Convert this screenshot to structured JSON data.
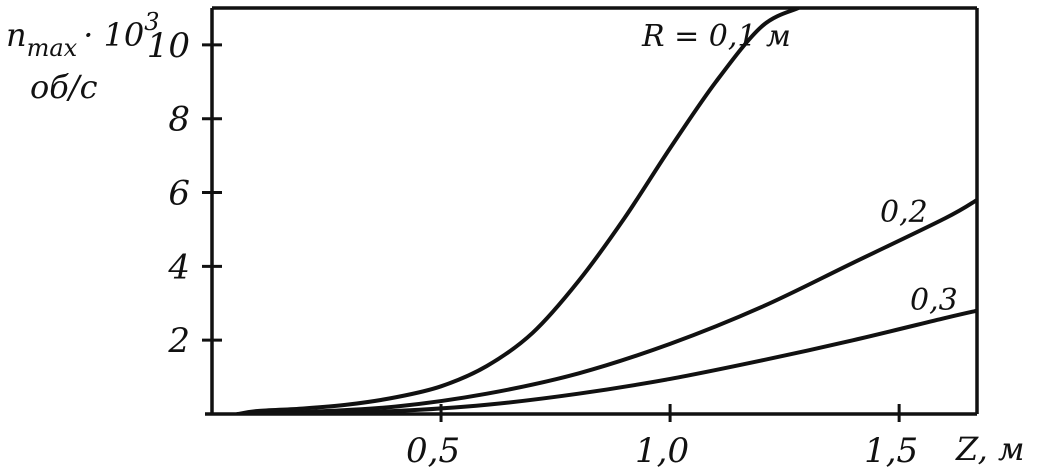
{
  "chart_data": {
    "type": "line",
    "y_title": {
      "main": "n",
      "subscript": "max",
      "suffix": "· 10",
      "superscript": "3"
    },
    "y_unit": "об/с",
    "x_title": "Z, м",
    "xlim": [
      0,
      1.67
    ],
    "ylim": [
      0,
      11
    ],
    "x_ticks": [
      {
        "value": 0.5,
        "label": "0,5"
      },
      {
        "value": 1.0,
        "label": "1,0"
      },
      {
        "value": 1.5,
        "label": "1,5"
      }
    ],
    "y_ticks": [
      {
        "value": 2,
        "label": "2"
      },
      {
        "value": 4,
        "label": "4"
      },
      {
        "value": 6,
        "label": "6"
      },
      {
        "value": 8,
        "label": "8"
      },
      {
        "value": 10,
        "label": "10"
      }
    ],
    "grid": false,
    "series": [
      {
        "name": "R = 0,1 м",
        "x": [
          0.0,
          0.1,
          0.2,
          0.3,
          0.4,
          0.5,
          0.6,
          0.7,
          0.8,
          0.9,
          1.0,
          1.1,
          1.2,
          1.28
        ],
        "y": [
          0.0,
          0.08,
          0.15,
          0.26,
          0.45,
          0.75,
          1.3,
          2.2,
          3.6,
          5.3,
          7.2,
          9.0,
          10.5,
          11.0
        ]
      },
      {
        "name": "0,2",
        "x": [
          0.0,
          0.2,
          0.4,
          0.6,
          0.8,
          1.0,
          1.2,
          1.4,
          1.6,
          1.67
        ],
        "y": [
          0.0,
          0.05,
          0.2,
          0.55,
          1.1,
          1.9,
          2.9,
          4.1,
          5.3,
          5.8
        ]
      },
      {
        "name": "0,3",
        "x": [
          0.0,
          0.2,
          0.4,
          0.6,
          0.8,
          1.0,
          1.2,
          1.4,
          1.6,
          1.67
        ],
        "y": [
          0.0,
          0.02,
          0.08,
          0.25,
          0.55,
          0.95,
          1.45,
          2.0,
          2.6,
          2.8
        ]
      }
    ]
  }
}
